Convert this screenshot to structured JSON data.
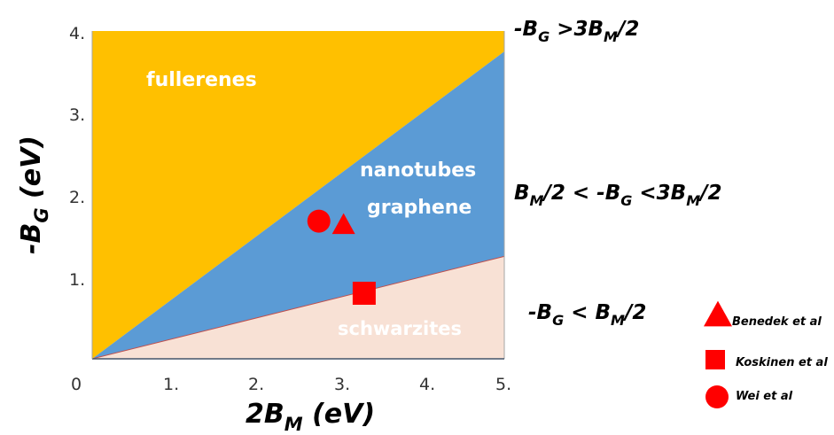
{
  "chart_data": {
    "type": "scatter",
    "xlabel": {
      "base": "2B",
      "sub": "M",
      "rest": " (eV)"
    },
    "ylabel": {
      "base": "-B",
      "sub": "G",
      "rest": " (eV)"
    },
    "xlim": [
      0,
      5
    ],
    "ylim": [
      0,
      4
    ],
    "x_ticks": [
      "0",
      "1.",
      "2.",
      "3.",
      "4.",
      "5."
    ],
    "y_ticks": [
      "1.",
      "2.",
      "3.",
      "4."
    ],
    "regions": [
      {
        "label": "fullerenes",
        "color": "#FFC000",
        "upper_slope": null,
        "lower_slope": 0.75
      },
      {
        "label_lines": [
          "nanotubes",
          "graphene"
        ],
        "color": "#5B9BD5",
        "upper_slope": 0.75,
        "lower_slope": 0.25
      },
      {
        "label": "schwarzites",
        "color": "#F8E1D5",
        "upper_slope": 0.25,
        "lower_slope": 0
      }
    ],
    "inequalities": {
      "top": [
        {
          "t": "-B"
        },
        {
          "t": "G",
          "sub": true
        },
        {
          "t": " >3B"
        },
        {
          "t": "M",
          "sub": true
        },
        {
          "t": "/2"
        }
      ],
      "middle": [
        {
          "t": "B"
        },
        {
          "t": "M",
          "sub": true
        },
        {
          "t": "/2 < -B"
        },
        {
          "t": "G",
          "sub": true
        },
        {
          "t": " <3B"
        },
        {
          "t": "M",
          "sub": true
        },
        {
          "t": "/2"
        }
      ],
      "bottom": [
        {
          "t": "-B"
        },
        {
          "t": "G",
          "sub": true
        },
        {
          "t": " < B"
        },
        {
          "t": "M",
          "sub": true
        },
        {
          "t": "/2"
        }
      ]
    },
    "series": [
      {
        "name": "Benedek et al",
        "marker": "triangle",
        "color": "#FF0000",
        "points": [
          [
            3.05,
            1.65
          ]
        ]
      },
      {
        "name": "Koskinen et al",
        "marker": "square",
        "color": "#FF0000",
        "points": [
          [
            3.3,
            0.8
          ]
        ]
      },
      {
        "name": "Wei et al",
        "marker": "circle",
        "color": "#FF0000",
        "points": [
          [
            2.75,
            1.68
          ]
        ]
      }
    ],
    "legend": "bottom-right"
  }
}
